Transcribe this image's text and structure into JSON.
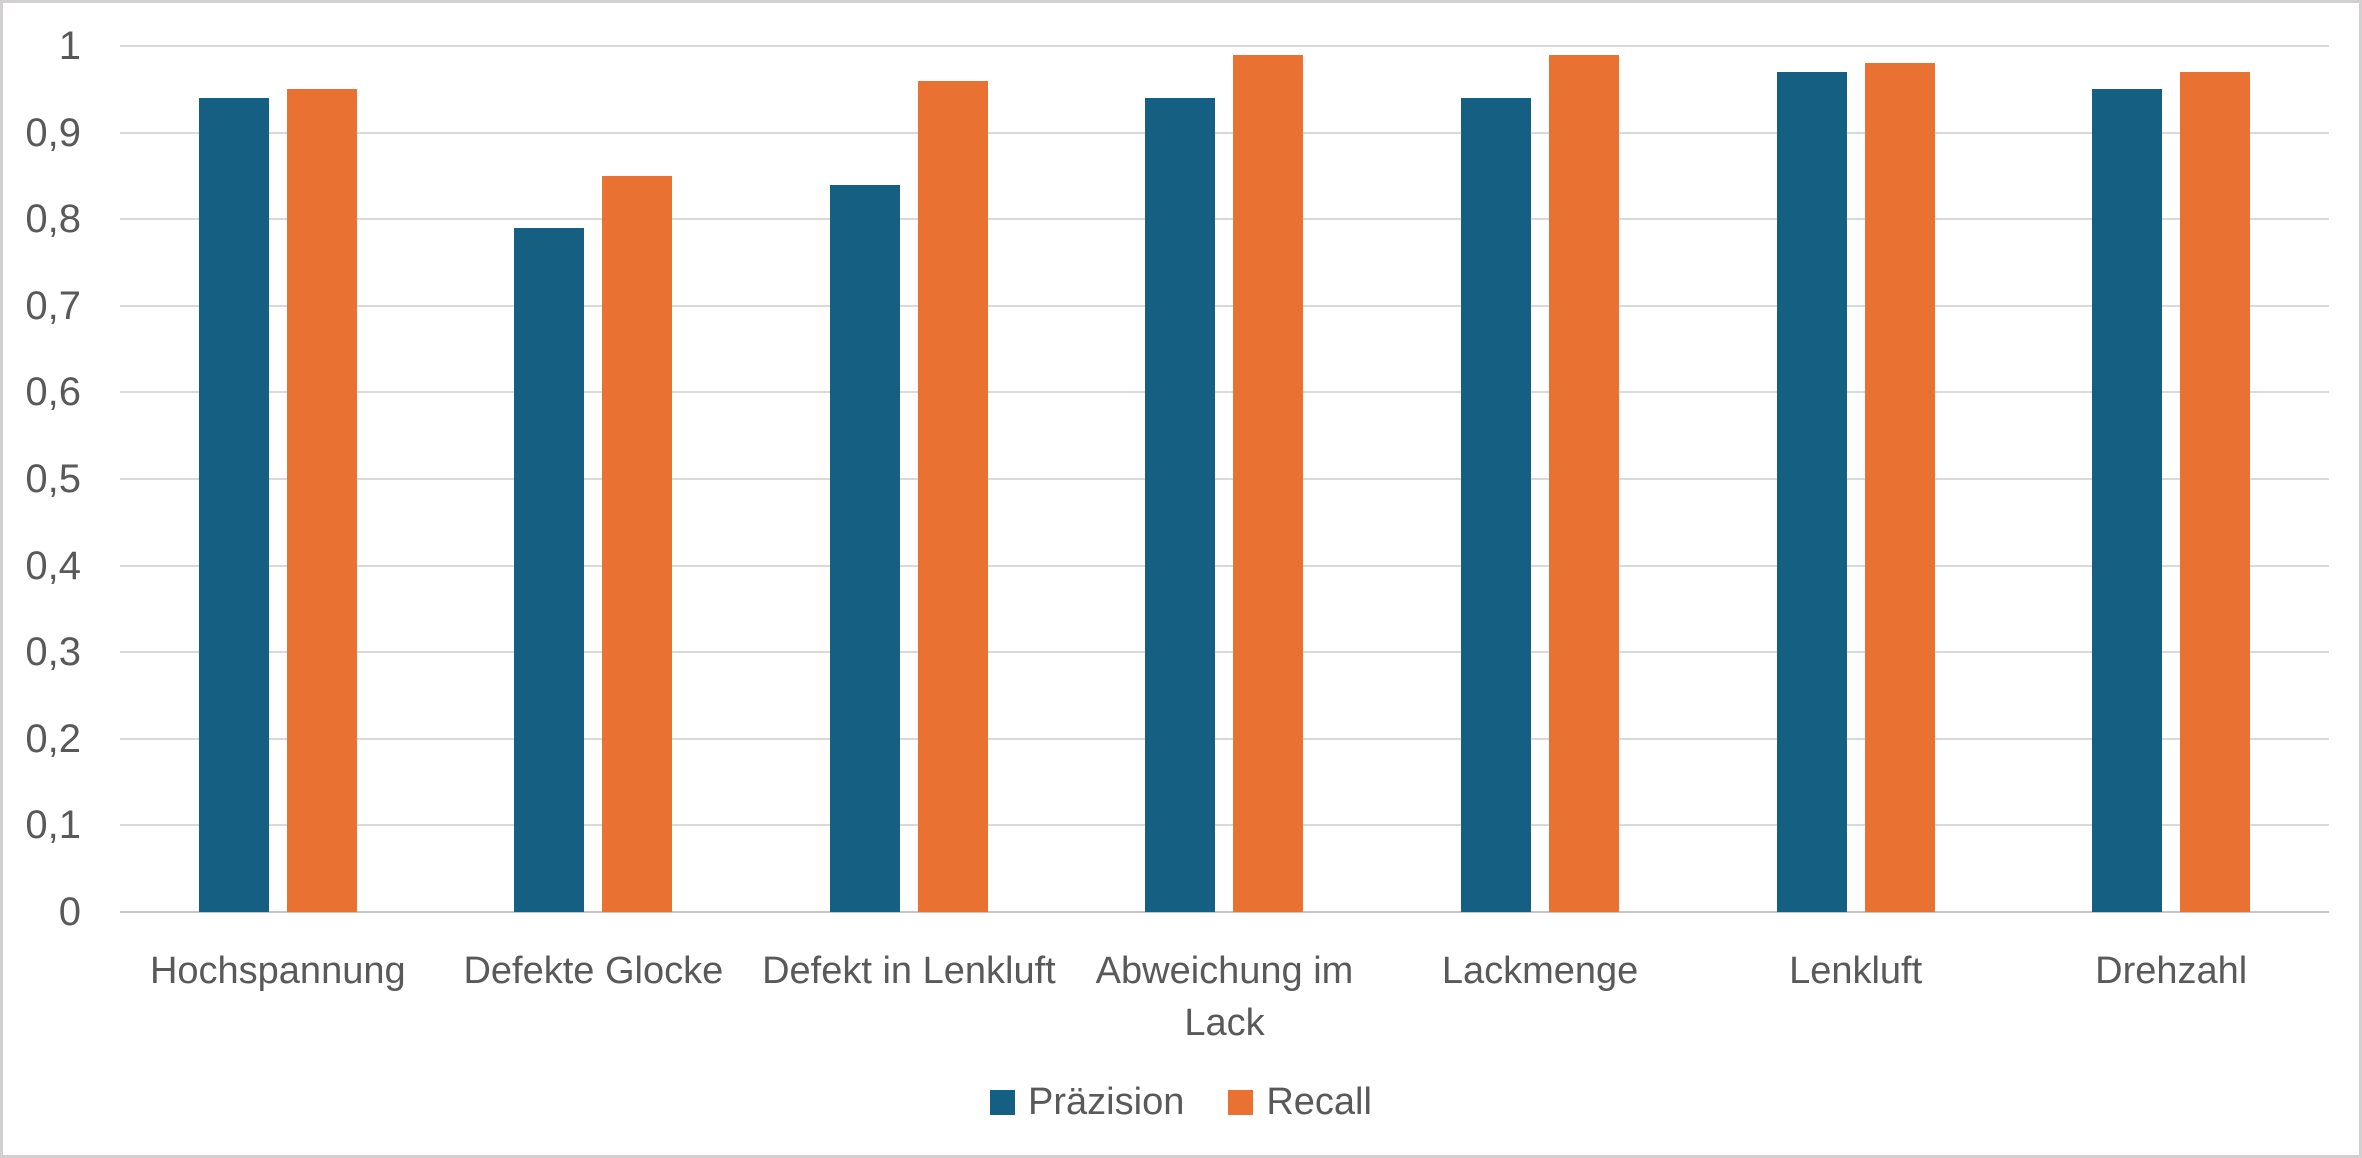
{
  "chart_data": {
    "type": "bar",
    "categories": [
      "Hochspannung",
      "Defekte Glocke",
      "Defekt in Lenkluft",
      "Abweichung im\nLack",
      "Lackmenge",
      "Lenkluft",
      "Drehzahl"
    ],
    "series": [
      {
        "name": "Präzision",
        "color": "#156082",
        "values": [
          0.94,
          0.79,
          0.84,
          0.94,
          0.94,
          0.97,
          0.95
        ]
      },
      {
        "name": "Recall",
        "color": "#E97132",
        "values": [
          0.95,
          0.85,
          0.96,
          0.99,
          0.99,
          0.98,
          0.97
        ]
      }
    ],
    "title": "",
    "xlabel": "",
    "ylabel": "",
    "ylim": [
      0,
      1
    ],
    "ytick_step": 0.1,
    "ytick_labels": [
      "0",
      "0,1",
      "0,2",
      "0,3",
      "0,4",
      "0,5",
      "0,6",
      "0,7",
      "0,8",
      "0,9",
      "1"
    ],
    "decimal_separator": ",",
    "grid": true,
    "gridline_color": "#D9D9D9",
    "axis_line_color": "#C6C6C6",
    "text_color": "#595959",
    "background_color": "#FFFFFF",
    "border_color": "#D2D0D0",
    "legend_position": "bottom"
  }
}
